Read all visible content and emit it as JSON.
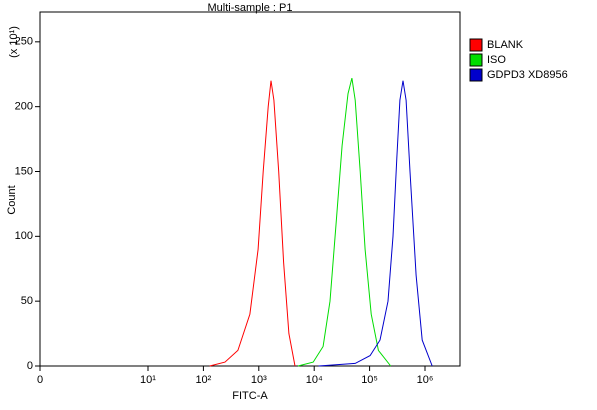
{
  "chart_data": {
    "type": "line",
    "title": "Multi-sample : P1",
    "x_label": "FITC-A",
    "y_label": "Count",
    "y_scale_label": "(x 10¹)",
    "xlim": [
      0,
      4000000
    ],
    "ylim": [
      0,
      273
    ],
    "xticks": [
      0,
      {
        "value": 10,
        "label": "10¹"
      },
      {
        "value": 100,
        "label": "10²"
      },
      {
        "value": 1000,
        "label": "10³"
      },
      {
        "value": 10000,
        "label": "10⁴"
      },
      {
        "value": 100000,
        "label": "10⁵"
      },
      {
        "value": 1000000,
        "label": "10⁶"
      }
    ],
    "yticks": [
      0,
      50,
      100,
      150,
      200,
      250
    ],
    "series": [
      {
        "name": "BLANK",
        "color": "#ff0000",
        "x": [
          130,
          245,
          420,
          690,
          970,
          1200,
          1480,
          1660,
          1870,
          2290,
          2800,
          3500,
          4500
        ],
        "values": [
          0,
          3,
          12,
          40,
          90,
          150,
          200,
          220,
          205,
          150,
          80,
          25,
          0
        ]
      },
      {
        "name": "ISO",
        "color": "#00dd00",
        "x": [
          5100,
          9600,
          14500,
          19300,
          24800,
          31900,
          40800,
          48000,
          54900,
          67600,
          83000,
          107000,
          144000,
          240000
        ],
        "values": [
          0,
          3,
          15,
          50,
          110,
          170,
          210,
          222,
          205,
          150,
          90,
          40,
          12,
          0
        ]
      },
      {
        "name": "GDPD3 XD8956",
        "color": "#0000cc",
        "x": [
          12000,
          55000,
          102000,
          154000,
          215000,
          265000,
          310000,
          353000,
          400000,
          455000,
          536000,
          690000,
          890000,
          1350000
        ],
        "values": [
          0,
          2,
          8,
          20,
          50,
          100,
          160,
          205,
          220,
          205,
          150,
          70,
          20,
          0
        ]
      }
    ]
  }
}
